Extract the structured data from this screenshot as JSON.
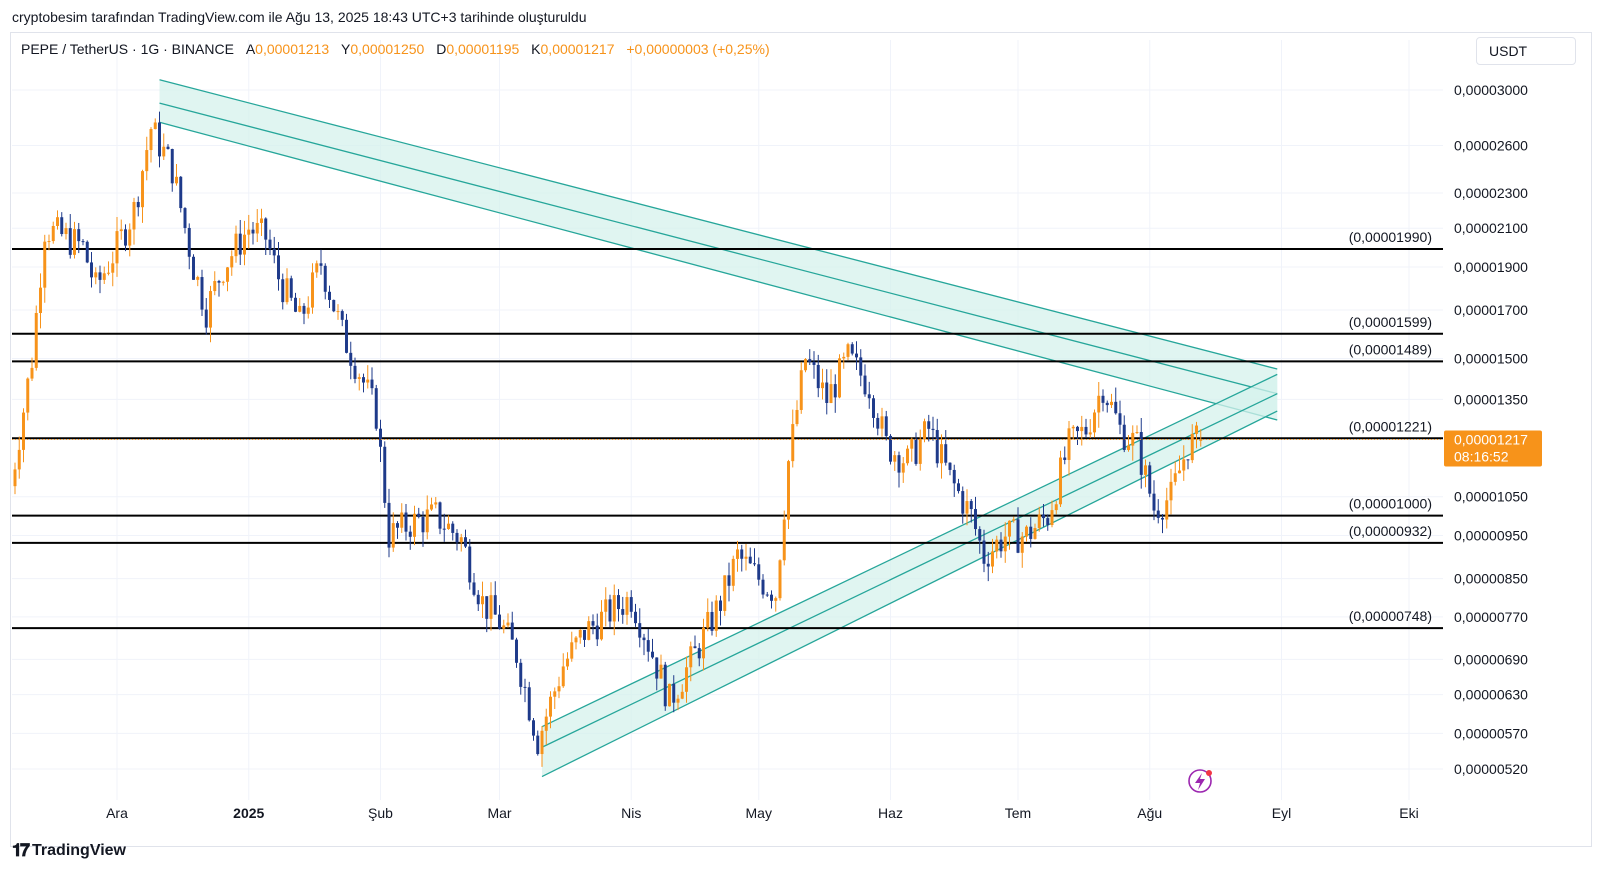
{
  "caption": "cryptobesim tarafından TradingView.com ile Ağu 13, 2025 18:43 UTC+3 tarihinde oluşturuldu",
  "legend": {
    "symbol": "PEPE / TetherUS · 1G · BINANCE",
    "open_label": "A",
    "open": "0,00001213",
    "high_label": "Y",
    "high": "0,00001250",
    "low_label": "D",
    "low": "0,00001195",
    "close_label": "K",
    "close": "0,00001217",
    "change": "+0,00000003 (+0,25%)"
  },
  "currency": "USDT",
  "brand": "TradingView",
  "colors": {
    "up": "#f7931a",
    "down": "#1e3a8a",
    "channel": "#26a69a",
    "channel_fill": "#d6f2ec",
    "level": "#000000",
    "price_tag": "#f7931a"
  },
  "chart_data": {
    "type": "candlestick",
    "scale": "log",
    "x_ticks": [
      {
        "label": "Ara",
        "bold": false
      },
      {
        "label": "2025",
        "bold": true
      },
      {
        "label": "Şub",
        "bold": false
      },
      {
        "label": "Mar",
        "bold": false
      },
      {
        "label": "Nis",
        "bold": false
      },
      {
        "label": "May",
        "bold": false
      },
      {
        "label": "Haz",
        "bold": false
      },
      {
        "label": "Tem",
        "bold": false
      },
      {
        "label": "Ağu",
        "bold": false
      },
      {
        "label": "Eyl",
        "bold": false
      },
      {
        "label": "Eki",
        "bold": false
      }
    ],
    "x_tick_dates": [
      "2024-12-01",
      "2025-01-01",
      "2025-02-01",
      "2025-03-01",
      "2025-04-01",
      "2025-05-01",
      "2025-06-01",
      "2025-07-01",
      "2025-08-01",
      "2025-09-01",
      "2025-10-01"
    ],
    "y_ticks": [
      {
        "label": "0,00003000",
        "value": 3e-05
      },
      {
        "label": "0,00002600",
        "value": 2.6e-05
      },
      {
        "label": "0,00002300",
        "value": 2.3e-05
      },
      {
        "label": "0,00002100",
        "value": 2.1e-05
      },
      {
        "label": "0,00001900",
        "value": 1.9e-05
      },
      {
        "label": "0,00001700",
        "value": 1.7e-05
      },
      {
        "label": "0,00001500",
        "value": 1.5e-05
      },
      {
        "label": "0,00001350",
        "value": 1.35e-05
      },
      {
        "label": "0,00001050",
        "value": 1.05e-05
      },
      {
        "label": "0,00000950",
        "value": 9.5e-06
      },
      {
        "label": "0,00000850",
        "value": 8.5e-06
      },
      {
        "label": "0,00000770",
        "value": 7.7e-06
      },
      {
        "label": "0,00000690",
        "value": 6.9e-06
      },
      {
        "label": "0,00000630",
        "value": 6.3e-06
      },
      {
        "label": "0,00000570",
        "value": 5.7e-06
      },
      {
        "label": "0,00000520",
        "value": 5.2e-06
      }
    ],
    "levels": [
      {
        "label": "(0,00001990)",
        "value": 1.99e-05
      },
      {
        "label": "(0,00001599)",
        "value": 1.599e-05
      },
      {
        "label": "(0,00001489)",
        "value": 1.489e-05
      },
      {
        "label": "(0,00001221)",
        "value": 1.221e-05
      },
      {
        "label": "(0,00001000)",
        "value": 1e-05
      },
      {
        "label": "(0,00000932)",
        "value": 9.32e-06
      },
      {
        "label": "(0,00000748)",
        "value": 7.48e-06
      }
    ],
    "last_price": {
      "label": "0,00001217",
      "countdown": "08:16:52",
      "value": 1.217e-05
    },
    "channels": [
      {
        "name": "descending",
        "lines": [
          {
            "from": [
              "2024-12-11",
              3.08e-05
            ],
            "to": [
              "2025-08-31",
              1.46e-05
            ]
          },
          {
            "from": [
              "2024-12-11",
              2.9e-05
            ],
            "to": [
              "2025-08-31",
              1.37e-05
            ]
          },
          {
            "from": [
              "2024-12-11",
              2.76e-05
            ],
            "to": [
              "2025-08-31",
              1.28e-05
            ]
          }
        ]
      },
      {
        "name": "ascending",
        "lines": [
          {
            "from": [
              "2025-03-11",
              5.8e-06
            ],
            "to": [
              "2025-08-31",
              1.44e-05
            ]
          },
          {
            "from": [
              "2025-03-11",
              5.5e-06
            ],
            "to": [
              "2025-08-31",
              1.37e-05
            ]
          },
          {
            "from": [
              "2025-03-11",
              5.1e-06
            ],
            "to": [
              "2025-08-31",
              1.31e-05
            ]
          }
        ]
      }
    ],
    "series": [
      {
        "date": "2024-11-06",
        "close": 1.08e-05
      },
      {
        "date": "2024-11-11",
        "close": 1.5e-05
      },
      {
        "date": "2024-11-14",
        "close": 2.1e-05
      },
      {
        "date": "2024-11-19",
        "close": 2.05e-05
      },
      {
        "date": "2024-11-23",
        "close": 2e-05
      },
      {
        "date": "2024-11-26",
        "close": 1.8e-05
      },
      {
        "date": "2024-12-01",
        "close": 2e-05
      },
      {
        "date": "2024-12-05",
        "close": 2.2e-05
      },
      {
        "date": "2024-12-09",
        "close": 2.72e-05
      },
      {
        "date": "2024-12-14",
        "close": 2.45e-05
      },
      {
        "date": "2024-12-19",
        "close": 1.9e-05
      },
      {
        "date": "2024-12-22",
        "close": 1.7e-05
      },
      {
        "date": "2024-12-26",
        "close": 1.9e-05
      },
      {
        "date": "2025-01-01",
        "close": 2.1e-05
      },
      {
        "date": "2025-01-05",
        "close": 2.05e-05
      },
      {
        "date": "2025-01-08",
        "close": 1.85e-05
      },
      {
        "date": "2025-01-13",
        "close": 1.65e-05
      },
      {
        "date": "2025-01-18",
        "close": 1.92e-05
      },
      {
        "date": "2025-01-23",
        "close": 1.6e-05
      },
      {
        "date": "2025-01-27",
        "close": 1.45e-05
      },
      {
        "date": "2025-01-31",
        "close": 1.3e-05
      },
      {
        "date": "2025-02-03",
        "close": 9.5e-06
      },
      {
        "date": "2025-02-08",
        "close": 9.8e-06
      },
      {
        "date": "2025-02-14",
        "close": 1e-05
      },
      {
        "date": "2025-02-20",
        "close": 9.4e-06
      },
      {
        "date": "2025-02-25",
        "close": 8e-06
      },
      {
        "date": "2025-03-01",
        "close": 7.6e-06
      },
      {
        "date": "2025-03-05",
        "close": 7e-06
      },
      {
        "date": "2025-03-10",
        "close": 5.6e-06
      },
      {
        "date": "2025-03-16",
        "close": 6.8e-06
      },
      {
        "date": "2025-03-21",
        "close": 7.4e-06
      },
      {
        "date": "2025-03-27",
        "close": 7.8e-06
      },
      {
        "date": "2025-04-01",
        "close": 8.1e-06
      },
      {
        "date": "2025-04-06",
        "close": 7e-06
      },
      {
        "date": "2025-04-10",
        "close": 6.2e-06
      },
      {
        "date": "2025-04-16",
        "close": 7e-06
      },
      {
        "date": "2025-04-22",
        "close": 8e-06
      },
      {
        "date": "2025-04-26",
        "close": 9e-06
      },
      {
        "date": "2025-05-01",
        "close": 8.5e-06
      },
      {
        "date": "2025-05-05",
        "close": 8.2e-06
      },
      {
        "date": "2025-05-08",
        "close": 1.15e-05
      },
      {
        "date": "2025-05-12",
        "close": 1.5e-05
      },
      {
        "date": "2025-05-17",
        "close": 1.35e-05
      },
      {
        "date": "2025-05-22",
        "close": 1.5e-05
      },
      {
        "date": "2025-05-27",
        "close": 1.4e-05
      },
      {
        "date": "2025-05-31",
        "close": 1.2e-05
      },
      {
        "date": "2025-06-05",
        "close": 1.15e-05
      },
      {
        "date": "2025-06-10",
        "close": 1.25e-05
      },
      {
        "date": "2025-06-15",
        "close": 1.1e-05
      },
      {
        "date": "2025-06-20",
        "close": 1e-05
      },
      {
        "date": "2025-06-23",
        "close": 9e-06
      },
      {
        "date": "2025-06-28",
        "close": 9.5e-06
      },
      {
        "date": "2025-07-03",
        "close": 9.5e-06
      },
      {
        "date": "2025-07-08",
        "close": 1e-05
      },
      {
        "date": "2025-07-13",
        "close": 1.2e-05
      },
      {
        "date": "2025-07-17",
        "close": 1.25e-05
      },
      {
        "date": "2025-07-21",
        "close": 1.4e-05
      },
      {
        "date": "2025-07-25",
        "close": 1.25e-05
      },
      {
        "date": "2025-07-29",
        "close": 1.2e-05
      },
      {
        "date": "2025-08-02",
        "close": 1.02e-05
      },
      {
        "date": "2025-08-06",
        "close": 1.05e-05
      },
      {
        "date": "2025-08-10",
        "close": 1.2e-05
      },
      {
        "date": "2025-08-13",
        "close": 1.217e-05
      }
    ]
  }
}
